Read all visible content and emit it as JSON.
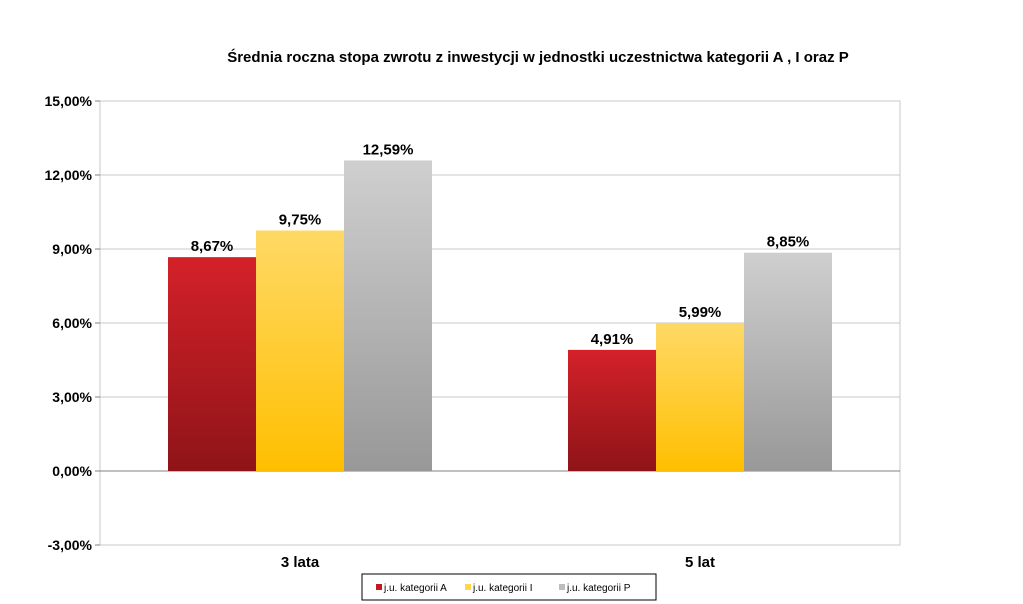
{
  "chart_data": {
    "type": "bar",
    "title": "Średnia roczna stopa zwrotu z inwestycji w jednostki uczestnictwa kategorii A , I oraz P",
    "categories": [
      "3 lata",
      "5 lat"
    ],
    "series": [
      {
        "name": "j.u. kategorii A",
        "values": [
          8.67,
          4.91
        ],
        "labels": [
          "8,67%",
          "4,91%"
        ],
        "color": "#c0191e"
      },
      {
        "name": "j.u. kategorii I",
        "values": [
          9.75,
          5.99
        ],
        "labels": [
          "9,75%",
          "5,99%"
        ],
        "color": "#ffd54a"
      },
      {
        "name": "j.u. kategorii P",
        "values": [
          12.59,
          8.85
        ],
        "labels": [
          "12,59%",
          "8,85%"
        ],
        "color": "#bdbdbd"
      }
    ],
    "ylim": [
      -3,
      15
    ],
    "yticks": [
      -3,
      0,
      3,
      6,
      9,
      12,
      15
    ],
    "ytick_labels": [
      "-3,00%",
      "0,00%",
      "3,00%",
      "6,00%",
      "9,00%",
      "12,00%",
      "15,00%"
    ],
    "xlabel": "",
    "ylabel": "",
    "grid": true,
    "legend_position": "bottom"
  }
}
